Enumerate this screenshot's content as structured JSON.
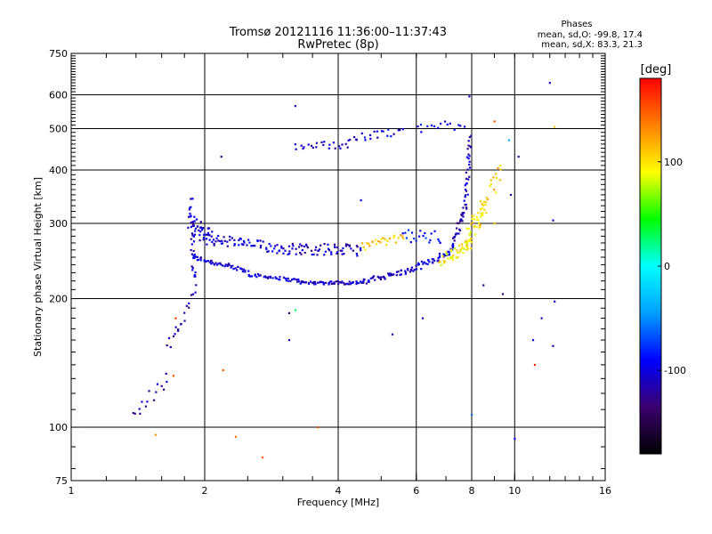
{
  "chart_data": {
    "type": "scatter",
    "title": "Tromsø 20121116 11:36:00–11:37:43",
    "subtitle": "RwPretec (8p)",
    "xlabel": "Frequency [MHz]",
    "ylabel": "Stationary phase Virtual Height [km]",
    "xscale": "log2",
    "yscale": "log",
    "xlim": [
      1,
      16
    ],
    "ylim": [
      75,
      750
    ],
    "grid": true,
    "x_ticks": [
      1,
      2,
      4,
      6,
      8,
      10,
      16
    ],
    "x_tick_labels": [
      "1",
      "2",
      "4",
      "6",
      "8",
      "10",
      "16"
    ],
    "y_ticks": [
      75,
      100,
      200,
      300,
      400,
      500,
      600,
      750
    ],
    "y_tick_labels": [
      "75",
      "100",
      "200",
      "300",
      "400",
      "500",
      "600",
      "750"
    ],
    "y_grid": [
      100,
      200,
      300,
      400,
      500,
      600
    ],
    "x_grid": [
      2,
      4,
      6,
      8,
      10
    ],
    "phase_stats": {
      "heading": "Phases",
      "line_o": "mean, sd,O: -99.8, 17.4",
      "line_x": "mean, sd,X:  83.3, 21.3"
    },
    "colorbar": {
      "label": "[deg]",
      "range": [
        -180,
        180
      ],
      "ticks": [
        100,
        0,
        -100
      ],
      "tick_labels": [
        "100",
        "0",
        "-100"
      ],
      "stops": [
        "#000000",
        "#3a006e",
        "#0000ff",
        "#00a0ff",
        "#00ffff",
        "#00ff00",
        "#ffff00",
        "#ff8000",
        "#ff0000"
      ]
    },
    "segments": [
      {
        "name": "",
        "start": [
          1.88,
          250
        ],
        "end": [
          2.5,
          232
        ],
        "phase": -105,
        "n": 50,
        "spread": 3
      },
      {
        "name": "",
        "start": [
          2.5,
          228
        ],
        "end": [
          3.3,
          220
        ],
        "phase": -105,
        "n": 40,
        "spread": 2
      },
      {
        "name": "",
        "start": [
          3.3,
          218
        ],
        "end": [
          4.6,
          218
        ],
        "phase": -108,
        "n": 60,
        "spread": 2
      },
      {
        "name": "",
        "start": [
          4.6,
          220
        ],
        "end": [
          6.0,
          235
        ],
        "phase": -108,
        "n": 45,
        "spread": 3
      },
      {
        "name": "",
        "start": [
          6.0,
          237
        ],
        "end": [
          7.2,
          258
        ],
        "phase": -105,
        "n": 35,
        "spread": 4
      },
      {
        "name": "",
        "start": [
          7.2,
          262
        ],
        "end": [
          7.75,
          330
        ],
        "phase": -110,
        "n": 35,
        "spread": 6
      },
      {
        "name": "",
        "start": [
          7.75,
          330
        ],
        "end": [
          7.95,
          480
        ],
        "phase": -110,
        "n": 30,
        "spread": 8
      },
      {
        "name": "",
        "start": [
          1.85,
          300
        ],
        "end": [
          2.1,
          275
        ],
        "phase": -105,
        "n": 45,
        "spread": 15
      },
      {
        "name": "",
        "start": [
          2.1,
          275
        ],
        "end": [
          3.0,
          262
        ],
        "phase": -100,
        "n": 55,
        "spread": 8
      },
      {
        "name": "",
        "start": [
          3.0,
          262
        ],
        "end": [
          4.5,
          260
        ],
        "phase": -110,
        "n": 65,
        "spread": 8
      },
      {
        "name": "",
        "start": [
          4.5,
          265
        ],
        "end": [
          5.6,
          278
        ],
        "phase": 110,
        "n": 25,
        "spread": 6
      },
      {
        "name": "",
        "start": [
          5.6,
          282
        ],
        "end": [
          6.8,
          278
        ],
        "phase": -85,
        "n": 20,
        "spread": 10
      },
      {
        "name": "",
        "start": [
          6.8,
          245
        ],
        "end": [
          8.0,
          270
        ],
        "phase": 95,
        "n": 45,
        "spread": 8
      },
      {
        "name": "",
        "start": [
          7.8,
          280
        ],
        "end": [
          8.6,
          330
        ],
        "phase": 100,
        "n": 40,
        "spread": 18
      },
      {
        "name": "",
        "start": [
          8.5,
          330
        ],
        "end": [
          9.3,
          400
        ],
        "phase": 110,
        "n": 18,
        "spread": 20
      },
      {
        "name": "",
        "start": [
          3.2,
          455
        ],
        "end": [
          4.2,
          460
        ],
        "phase": -110,
        "n": 22,
        "spread": 10
      },
      {
        "name": "",
        "start": [
          4.2,
          470
        ],
        "end": [
          5.6,
          495
        ],
        "phase": -100,
        "n": 22,
        "spread": 12
      },
      {
        "name": "",
        "start": [
          6.0,
          500
        ],
        "end": [
          7.7,
          515
        ],
        "phase": -95,
        "n": 15,
        "spread": 15
      },
      {
        "name": "",
        "start": [
          1.4,
          110
        ],
        "end": [
          1.65,
          130
        ],
        "phase": -115,
        "n": 14,
        "spread": 5
      },
      {
        "name": "",
        "start": [
          1.65,
          150
        ],
        "end": [
          1.9,
          210
        ],
        "phase": -115,
        "n": 18,
        "spread": 6
      },
      {
        "name": "",
        "start": [
          1.9,
          215
        ],
        "end": [
          1.86,
          340
        ],
        "phase": -110,
        "n": 30,
        "spread": 10
      }
    ],
    "isolated_points": [
      {
        "x": 1.38,
        "y": 108,
        "phase": -120
      },
      {
        "x": 1.55,
        "y": 96,
        "phase": 130
      },
      {
        "x": 1.7,
        "y": 132,
        "phase": 150
      },
      {
        "x": 1.72,
        "y": 180,
        "phase": 160
      },
      {
        "x": 2.18,
        "y": 430,
        "phase": -120
      },
      {
        "x": 2.2,
        "y": 136,
        "phase": 150
      },
      {
        "x": 2.35,
        "y": 95,
        "phase": 140
      },
      {
        "x": 2.7,
        "y": 85,
        "phase": 150
      },
      {
        "x": 3.2,
        "y": 565,
        "phase": -110
      },
      {
        "x": 3.1,
        "y": 185,
        "phase": -130
      },
      {
        "x": 3.2,
        "y": 188,
        "phase": 30
      },
      {
        "x": 3.1,
        "y": 160,
        "phase": -110
      },
      {
        "x": 3.6,
        "y": 100,
        "phase": 150
      },
      {
        "x": 4.5,
        "y": 340,
        "phase": -100
      },
      {
        "x": 5.3,
        "y": 165,
        "phase": -110
      },
      {
        "x": 6.2,
        "y": 180,
        "phase": -110
      },
      {
        "x": 7.9,
        "y": 595,
        "phase": -110
      },
      {
        "x": 8.0,
        "y": 107,
        "phase": -60
      },
      {
        "x": 8.5,
        "y": 215,
        "phase": -120
      },
      {
        "x": 9.0,
        "y": 520,
        "phase": 150
      },
      {
        "x": 9.0,
        "y": 300,
        "phase": 110
      },
      {
        "x": 9.4,
        "y": 205,
        "phase": -130
      },
      {
        "x": 9.7,
        "y": 470,
        "phase": -40
      },
      {
        "x": 9.8,
        "y": 350,
        "phase": -120
      },
      {
        "x": 10.0,
        "y": 94,
        "phase": -100
      },
      {
        "x": 10.2,
        "y": 430,
        "phase": -120
      },
      {
        "x": 11.0,
        "y": 160,
        "phase": -100
      },
      {
        "x": 11.1,
        "y": 140,
        "phase": 170
      },
      {
        "x": 11.5,
        "y": 180,
        "phase": -110
      },
      {
        "x": 12.0,
        "y": 640,
        "phase": -110
      },
      {
        "x": 12.2,
        "y": 305,
        "phase": -110
      },
      {
        "x": 12.3,
        "y": 505,
        "phase": 110
      },
      {
        "x": 12.2,
        "y": 155,
        "phase": -120
      },
      {
        "x": 12.3,
        "y": 197,
        "phase": -110
      }
    ]
  }
}
